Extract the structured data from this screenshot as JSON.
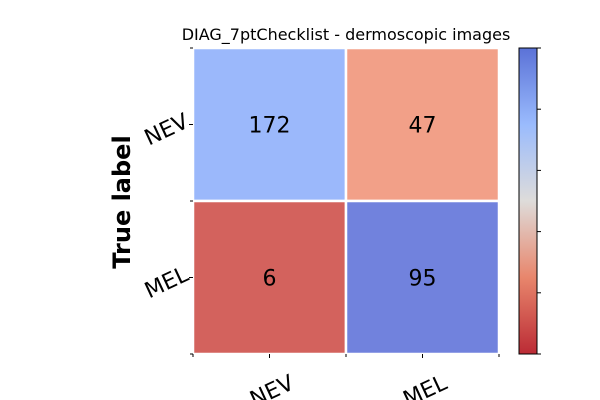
{
  "chart_data": {
    "type": "heatmap",
    "title": "DIAG_7ptChecklist - dermoscopic images",
    "ylabel": "True label",
    "xlabel": "",
    "x_categories": [
      "NEV",
      "MEL"
    ],
    "y_categories": [
      "NEV",
      "MEL"
    ],
    "matrix": [
      [
        172,
        47
      ],
      [
        6,
        95
      ]
    ],
    "colormap": "coolwarm",
    "diagonal_colors": {
      "high": "#7182dd",
      "low": "#9bb8fb"
    },
    "off_diagonal_colors": {
      "high": "#f2a088",
      "low": "#d3625d"
    },
    "colorbar": {
      "colors": [
        "#bb2b35",
        "#e8866c",
        "#dedcda",
        "#9abbfd",
        "#5b72d7"
      ],
      "ticks": 6
    },
    "grid": false
  }
}
